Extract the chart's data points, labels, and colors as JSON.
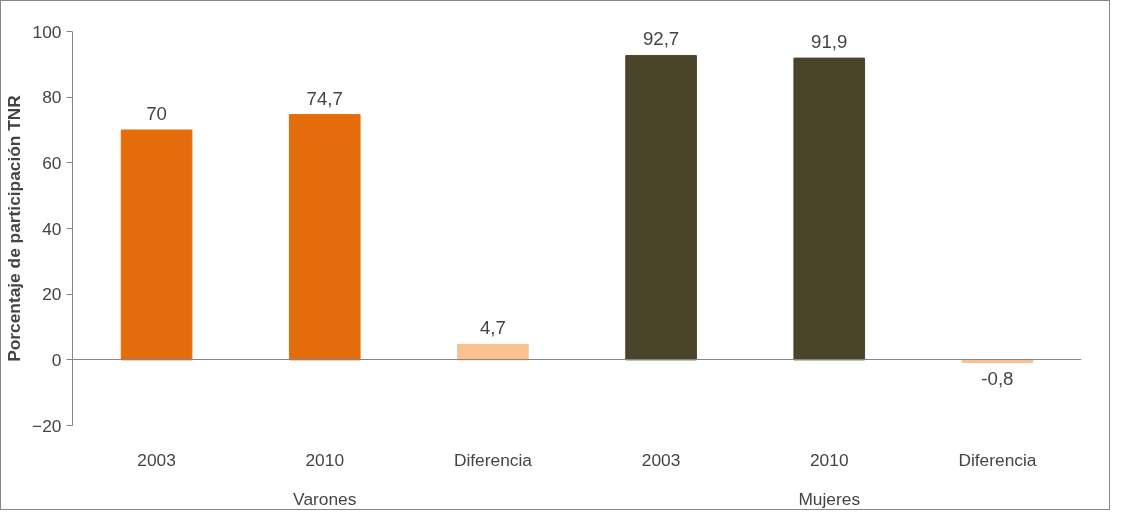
{
  "chart_data": {
    "type": "bar",
    "ylabel": "Porcentaje de participación TNR",
    "categories": [
      "2003",
      "2010",
      "Diferencia",
      "2003",
      "2010",
      "Diferencia"
    ],
    "values": [
      70,
      74.7,
      4.7,
      92.7,
      91.9,
      -0.8
    ],
    "colors": [
      "#e46c0a",
      "#e46c0a",
      "#fac090",
      "#4a452a",
      "#4a452a",
      "#fac090"
    ],
    "value_labels": [
      "70",
      "74,7",
      "4,7",
      "92,7",
      "91,9",
      "-0,8"
    ],
    "annotations": [
      "Varones",
      "Mujeres"
    ],
    "ylim": [
      -20,
      100
    ],
    "yticks": [
      -20,
      0,
      20,
      40,
      60,
      80,
      100
    ]
  }
}
